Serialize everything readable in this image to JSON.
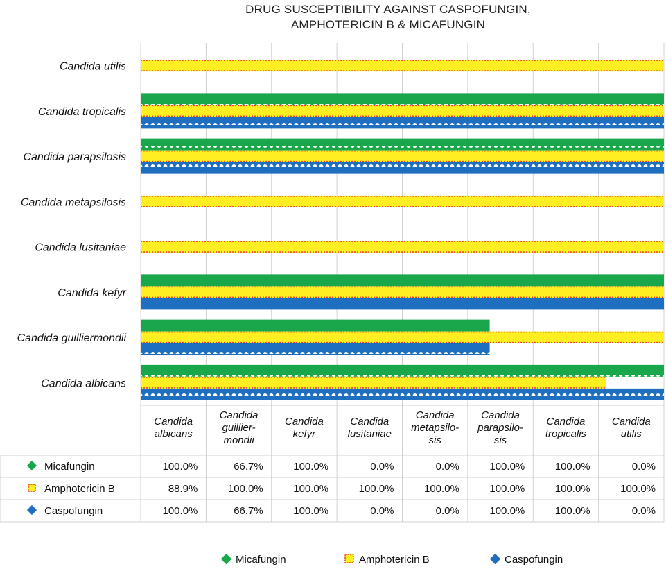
{
  "chart_data": {
    "type": "bar",
    "orientation": "horizontal",
    "title_lines": [
      "DRUG SUSCEPTIBILITY AGAINST CASPOFUNGIN,",
      "AMPHOTERICIN B & MICAFUNGIN"
    ],
    "categories": [
      "Candida albicans",
      "Candida guilliermondii",
      "Candida kefyr",
      "Candida lusitaniae",
      "Candida metapsilosis",
      "Candida parapsilosis",
      "Candida tropicalis",
      "Candida utilis"
    ],
    "table_headers": [
      [
        "Candida",
        "albicans"
      ],
      [
        "Candida",
        "guillier-",
        "mondii"
      ],
      [
        "Candida",
        "kefyr"
      ],
      [
        "Candida",
        "lusitaniae"
      ],
      [
        "Candida",
        "metapsilo-",
        "sis"
      ],
      [
        "Candida",
        "parapsilo-",
        "sis"
      ],
      [
        "Candida",
        "tropicalis"
      ],
      [
        "Candida",
        "utilis"
      ]
    ],
    "series": [
      {
        "name": "Micafungin",
        "values": [
          100.0,
          66.7,
          100.0,
          0.0,
          0.0,
          100.0,
          100.0,
          0.0
        ],
        "labels": [
          "100.0%",
          "66.7%",
          "100.0%",
          "0.0%",
          "0.0%",
          "100.0%",
          "100.0%",
          "0.0%"
        ],
        "color": "#1aa64a"
      },
      {
        "name": "Amphotericin B",
        "values": [
          88.9,
          100.0,
          100.0,
          100.0,
          100.0,
          100.0,
          100.0,
          100.0
        ],
        "labels": [
          "88.9%",
          "100.0%",
          "100.0%",
          "100.0%",
          "100.0%",
          "100.0%",
          "100.0%",
          "100.0%"
        ],
        "color": "#ffee22",
        "edge": "#e8452c"
      },
      {
        "name": "Caspofungin",
        "values": [
          100.0,
          66.7,
          100.0,
          0.0,
          0.0,
          100.0,
          100.0,
          0.0
        ],
        "labels": [
          "100.0%",
          "66.7%",
          "100.0%",
          "0.0%",
          "0.0%",
          "100.0%",
          "100.0%",
          "0.0%"
        ],
        "color": "#1e6fbf"
      }
    ],
    "xlim": [
      0,
      100
    ],
    "grid": true,
    "legend_position": "bottom"
  }
}
